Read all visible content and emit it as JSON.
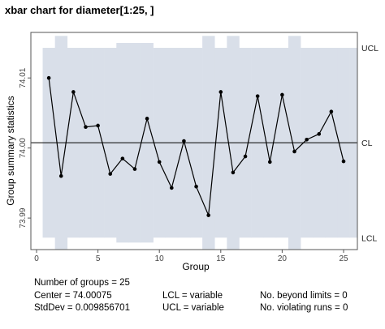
{
  "chart_data": {
    "type": "line",
    "title": "xbar chart for diameter[1:25, ]",
    "xlabel": "Group",
    "ylabel": "Group summary statistics",
    "xlim": [
      0,
      26
    ],
    "ylim": [
      73.9855,
      74.0165
    ],
    "x_ticks": [
      "0",
      "5",
      "10",
      "15",
      "20",
      "25"
    ],
    "y_ticks": [
      "73.99",
      "74.00",
      "74.01"
    ],
    "groups": [
      1,
      2,
      3,
      4,
      5,
      6,
      7,
      8,
      9,
      10,
      11,
      12,
      13,
      14,
      15,
      16,
      17,
      18,
      19,
      20,
      21,
      22,
      23,
      24,
      25
    ],
    "values": [
      74.01,
      73.996,
      74.008,
      74.003,
      74.0032,
      73.9963,
      73.9985,
      73.997,
      74.0042,
      73.998,
      73.9943,
      74.001,
      73.9945,
      73.9904,
      74.008,
      73.9965,
      73.9988,
      74.0074,
      73.998,
      74.0076,
      73.9995,
      74.0012,
      74.002,
      74.0052,
      73.9981
    ],
    "center": 74.00075,
    "ucl": [
      74.0143,
      74.016,
      74.0143,
      74.0143,
      74.0143,
      74.0143,
      74.015,
      74.015,
      74.015,
      74.0143,
      74.0143,
      74.0143,
      74.0143,
      74.016,
      74.0143,
      74.016,
      74.0143,
      74.0143,
      74.0143,
      74.0143,
      74.016,
      74.0143,
      74.0143,
      74.0143,
      74.0143,
      74.0143
    ],
    "lcl": [
      73.9872,
      73.9855,
      73.9872,
      73.9872,
      73.9872,
      73.9872,
      73.9865,
      73.9865,
      73.9865,
      73.9872,
      73.9872,
      73.9872,
      73.9872,
      73.9855,
      73.9872,
      73.9855,
      73.9872,
      73.9872,
      73.9872,
      73.9872,
      73.9855,
      73.9872,
      73.9872,
      73.9872,
      73.9872,
      73.9872
    ],
    "limit_labels": {
      "ucl": "UCL",
      "cl": "CL",
      "lcl": "LCL"
    },
    "grid": false,
    "colors": {
      "band": "#d9dfe9",
      "line": "#000000",
      "background": "#ffffff"
    }
  },
  "stats": {
    "number_of_groups": "Number of groups = 25",
    "center": "Center = 74.00075",
    "stddev": "StdDev = 0.009856701",
    "lcl": "LCL = variable",
    "ucl": "UCL = variable",
    "beyond_limits": "No. beyond limits = 0",
    "violating_runs": "No. violating runs = 0"
  }
}
